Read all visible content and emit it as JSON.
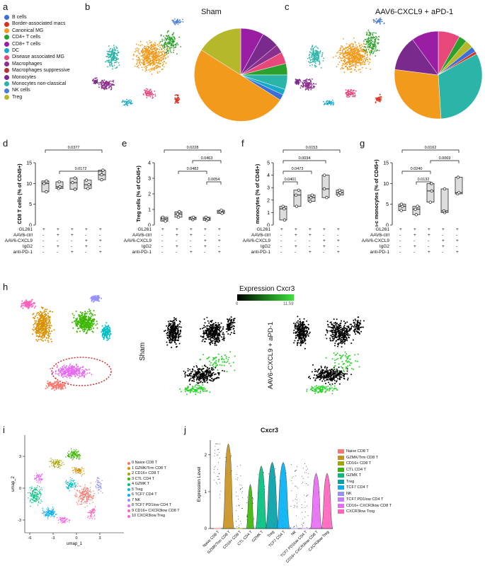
{
  "panels": {
    "a": "a",
    "b": "b",
    "c": "c",
    "d": "d",
    "e": "e",
    "f": "f",
    "g": "g",
    "h": "h",
    "i": "i",
    "j": "j"
  },
  "celltype_legend": [
    {
      "label": "B cells",
      "color": "#3a6fd8"
    },
    {
      "label": "Border-associated macs",
      "color": "#d7301f"
    },
    {
      "label": "Canonical MG",
      "color": "#f29a1c"
    },
    {
      "label": "CD4+ T cells",
      "color": "#2ca02c"
    },
    {
      "label": "CD8+ T cells",
      "color": "#9a1ea3"
    },
    {
      "label": "DC",
      "color": "#18a9c9"
    },
    {
      "label": "Disease associated MG",
      "color": "#e8477a"
    },
    {
      "label": "Macrophages",
      "color": "#8b2f8e"
    },
    {
      "label": "Macrophages suppressive",
      "color": "#b3332e"
    },
    {
      "label": "Monocytes",
      "color": "#7a2a8c"
    },
    {
      "label": "Monocytes non-classical",
      "color": "#2bb5a8"
    },
    {
      "label": "NK cells",
      "color": "#4d7fd9"
    },
    {
      "label": "Treg",
      "color": "#b5b82a"
    }
  ],
  "titles": {
    "sham": "Sham",
    "treated": "AAV6-CXCL9 + aPD-1"
  },
  "conditions": {
    "rows": [
      "GL261",
      "AAV6-ctrl",
      "AAV6-CXCL9",
      "IgG2",
      "anti-PD-1"
    ],
    "signs": [
      [
        "+",
        "+",
        "+",
        "+",
        "+"
      ],
      [
        "-",
        "+",
        "+",
        "-",
        "-"
      ],
      [
        "-",
        "-",
        "-",
        "+",
        "+"
      ],
      [
        "-",
        "+",
        "-",
        "+",
        "-"
      ],
      [
        "-",
        "-",
        "+",
        "-",
        "+"
      ]
    ]
  },
  "chart_data": [
    {
      "type": "box",
      "panel": "d",
      "ylabel": "CD8 T cells (% of CD45+)",
      "ylim": [
        0,
        15
      ],
      "yticks": [
        0,
        5,
        10,
        15
      ],
      "groups": [
        [
          8,
          10,
          10.6
        ],
        [
          8.8,
          9.2,
          10.4
        ],
        [
          8.6,
          10.2,
          11.3
        ],
        [
          8.8,
          9.7,
          10.8
        ],
        [
          10.9,
          12.1,
          13.2
        ]
      ],
      "brackets": [
        {
          "from": 1,
          "to": 5,
          "label": "0.0377"
        },
        {
          "from": 2,
          "to": 5,
          "label": "0.0172"
        }
      ]
    },
    {
      "type": "box",
      "panel": "e",
      "ylabel": "Treg cells (% of CD45+)",
      "ylim": [
        0,
        4
      ],
      "yticks": [
        0,
        1,
        2,
        3,
        4
      ],
      "groups": [
        [
          0.25,
          0.4,
          0.5
        ],
        [
          0.5,
          0.7,
          0.85
        ],
        [
          0.35,
          0.45,
          0.5
        ],
        [
          0.3,
          0.4,
          0.5
        ],
        [
          0.75,
          0.85,
          0.95
        ]
      ],
      "brackets": [
        {
          "from": 1,
          "to": 5,
          "label": "0.0228"
        },
        {
          "from": 3,
          "to": 5,
          "label": "0.0463"
        },
        {
          "from": 2,
          "to": 4,
          "label": "0.0482"
        },
        {
          "from": 4,
          "to": 5,
          "label": "0.0054"
        }
      ]
    },
    {
      "type": "box",
      "panel": "f",
      "ylabel": "monocytes (% of CD45+)",
      "ylim": [
        0,
        5
      ],
      "yticks": [
        0,
        1,
        2,
        3,
        4,
        5
      ],
      "groups": [
        [
          0.4,
          1.3,
          1.5
        ],
        [
          1.5,
          2.4,
          2.8
        ],
        [
          1.9,
          2.2,
          2.4
        ],
        [
          2.2,
          2.9,
          4.0
        ],
        [
          2.4,
          2.6,
          2.8
        ]
      ],
      "brackets": [
        {
          "from": 1,
          "to": 5,
          "label": "0.0153"
        },
        {
          "from": 1,
          "to": 4,
          "label": "0.0034"
        },
        {
          "from": 1,
          "to": 3,
          "label": "0.0473"
        },
        {
          "from": 1,
          "to": 2,
          "label": "0.0401"
        }
      ]
    },
    {
      "type": "box",
      "panel": "g",
      "ylabel": "n-c monocytes (% of CD45+)",
      "ylim": [
        0,
        15
      ],
      "yticks": [
        0,
        5,
        10,
        15
      ],
      "groups": [
        [
          3.5,
          4.5,
          5
        ],
        [
          2.5,
          3.8,
          4.5
        ],
        [
          5.5,
          8.2,
          10
        ],
        [
          3,
          3.4,
          8.7
        ],
        [
          7.5,
          7.8,
          11.5
        ]
      ],
      "brackets": [
        {
          "from": 1,
          "to": 5,
          "label": "0.0162"
        },
        {
          "from": 3,
          "to": 5,
          "label": "0.0069"
        },
        {
          "from": 1,
          "to": 3,
          "label": "0.0240"
        },
        {
          "from": 2,
          "to": 3,
          "label": "0.0132"
        }
      ]
    }
  ],
  "expression": {
    "title": "Expression Cxcr3",
    "min": "0",
    "max": "11.59",
    "sham": "Sham",
    "treated": "AAV6-CXCL9 + aPD-1"
  },
  "umap_i": {
    "xlabel": "umap_1",
    "ylabel": "umap_2",
    "xticks": [
      "-6",
      "-3",
      "0",
      "3"
    ],
    "yticks": [
      "3",
      "0",
      "-3"
    ]
  },
  "clusters": [
    {
      "id": "0",
      "label": "Naive CD8 T",
      "color": "#f8766d"
    },
    {
      "id": "1",
      "label": "GZMK/Trm CD8 T",
      "color": "#d89000"
    },
    {
      "id": "2",
      "label": "CD16+ CD8 T",
      "color": "#a3a500"
    },
    {
      "id": "3",
      "label": "CTL CD4 T",
      "color": "#39b600"
    },
    {
      "id": "4",
      "label": "GZMK T",
      "color": "#00bf7d"
    },
    {
      "id": "5",
      "label": "Treg",
      "color": "#00bfc4"
    },
    {
      "id": "6",
      "label": "TCF7 CD4 T",
      "color": "#00b0f6"
    },
    {
      "id": "7",
      "label": "NK",
      "color": "#9590ff"
    },
    {
      "id": "8",
      "label": "TCF7 PD1low CD4 T",
      "color": "#e76bf3"
    },
    {
      "id": "9",
      "label": "CD16+ CXCR3low CD8 T",
      "color": "#ff62bc"
    },
    {
      "id": "10",
      "label": "CXCR3low Treg",
      "color": "#f564e3"
    }
  ],
  "violin": {
    "title": "Cxcr3",
    "ylabel": "Expression Level",
    "yticks": [
      "0",
      "1",
      "2"
    ],
    "categories": [
      "Naive CD8 T",
      "GZMK/Trm CD8 T",
      "CD16+ CD8 T",
      "CTL CD4 T",
      "GZMK T",
      "Treg",
      "TCF7 CD4 T",
      "NK",
      "TCF7 PD1low CD4 T",
      "CD16+ CXCR3low CD8 T",
      "CXCR3low Treg"
    ],
    "legend": [
      {
        "label": "Naive CD8 T",
        "color": "#f8766d"
      },
      {
        "label": "GZMK/Trm CD8 T",
        "color": "#c99220"
      },
      {
        "label": "CD16+ CD8 T",
        "color": "#a3a500"
      },
      {
        "label": "CTL CD4 T",
        "color": "#39b600"
      },
      {
        "label": "GZMK T",
        "color": "#00bf7d"
      },
      {
        "label": "Treg",
        "color": "#00a0a8"
      },
      {
        "label": "TCF7 CD4 T",
        "color": "#00b0f6"
      },
      {
        "label": "NK",
        "color": "#9590ff"
      },
      {
        "label": "TCF7 PD1low CD4 T",
        "color": "#c77cff"
      },
      {
        "label": "CD16+ CXCR3low CD8 T",
        "color": "#e76bf3"
      },
      {
        "label": "CXCR3low Treg",
        "color": "#ff62bc"
      }
    ]
  }
}
